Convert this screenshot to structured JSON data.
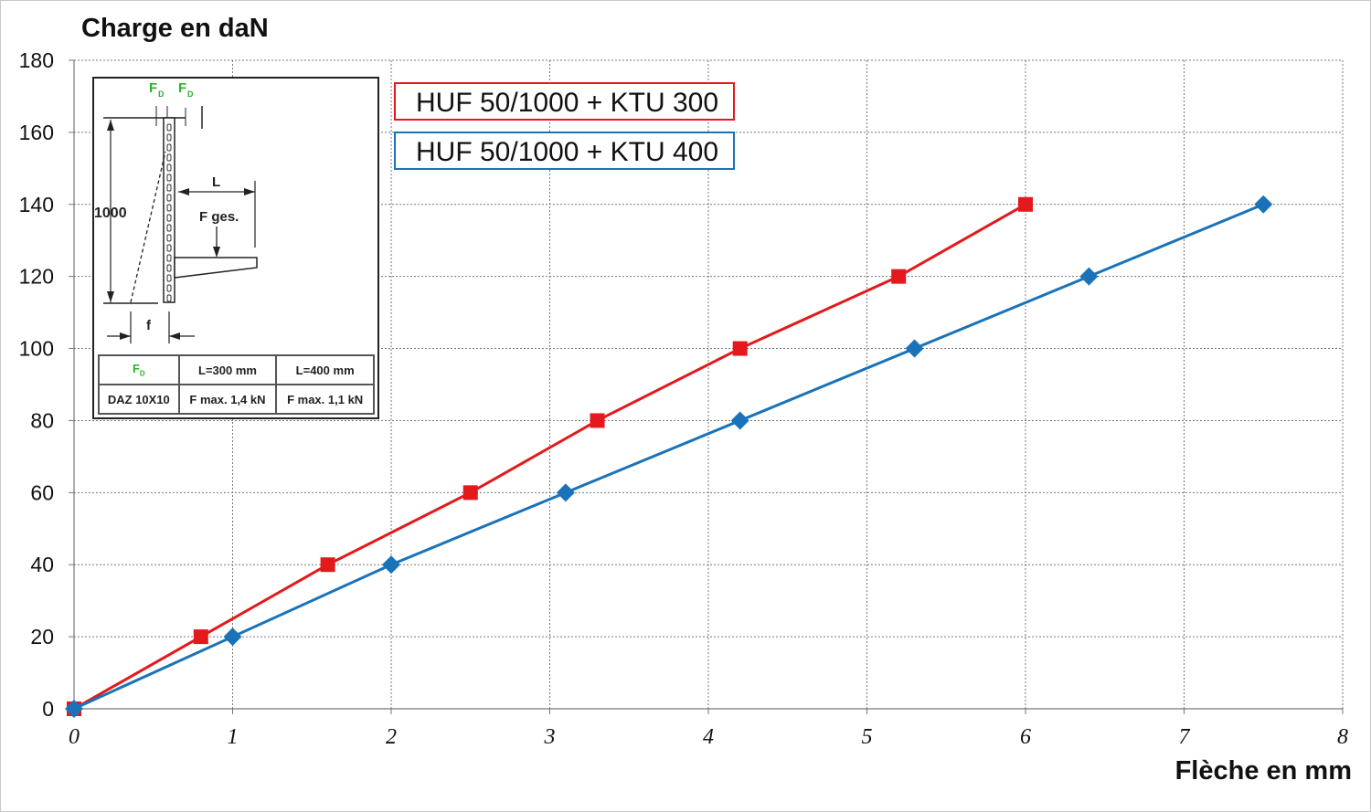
{
  "chart_data": {
    "type": "line",
    "ylabel": "Charge en daN",
    "xlabel": "Flèche en mm",
    "xlim": [
      0,
      8
    ],
    "ylim": [
      0,
      180
    ],
    "xticks": [
      0,
      1,
      2,
      3,
      4,
      5,
      6,
      7,
      8
    ],
    "yticks": [
      0,
      20,
      40,
      60,
      80,
      100,
      120,
      140,
      160,
      180
    ],
    "grid": true,
    "legend_position": "top-left",
    "series": [
      {
        "name": "HUF 50/1000 + KTU 300",
        "color": "#e3191c",
        "marker": "square",
        "x": [
          0,
          0.8,
          1.6,
          2.5,
          3.3,
          4.2,
          5.2,
          6.0
        ],
        "y": [
          0,
          20,
          40,
          60,
          80,
          100,
          120,
          140
        ]
      },
      {
        "name": "HUF 50/1000 + KTU 400",
        "color": "#1a73b8",
        "marker": "diamond",
        "x": [
          0,
          1.0,
          2.0,
          3.1,
          4.2,
          5.3,
          6.4,
          7.5
        ],
        "y": [
          0,
          20,
          40,
          60,
          80,
          100,
          120,
          140
        ]
      }
    ]
  },
  "inset": {
    "fd_label": "F",
    "fd_sub": "D",
    "height_label": "1000",
    "l_label": "L",
    "fges_label": "F ges.",
    "f_label": "f",
    "table": {
      "header": [
        "F",
        "L=300 mm",
        "L=400 mm"
      ],
      "header_fd_sub": "D",
      "row": [
        "DAZ 10X10",
        "F max. 1,4 kN",
        "F max. 1,1 kN"
      ]
    }
  }
}
